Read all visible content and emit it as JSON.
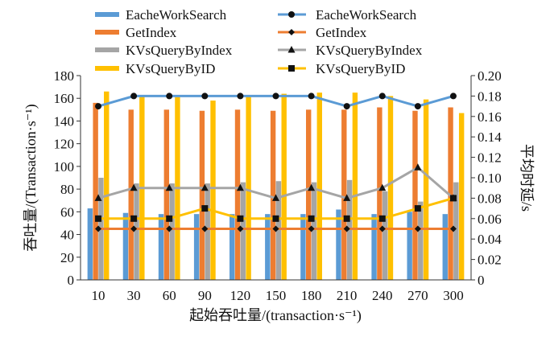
{
  "chart_data": {
    "type": "bar",
    "categories": [
      "10",
      "30",
      "60",
      "90",
      "120",
      "150",
      "180",
      "210",
      "240",
      "270",
      "300"
    ],
    "xlabel": "起始吞吐量/(transaction·s⁻¹)",
    "ylabel": "吞吐量/(Transaction·s⁻¹)",
    "y2label": "平均时延/s",
    "ylim": [
      0,
      180
    ],
    "yticks": [
      "0",
      "20",
      "40",
      "60",
      "80",
      "100",
      "120",
      "140",
      "160",
      "180"
    ],
    "y2lim": [
      0,
      0.2
    ],
    "y2ticks": [
      "0",
      "0.02",
      "0.04",
      "0.06",
      "0.08",
      "0.10",
      "0.12",
      "0.14",
      "0.16",
      "0.18",
      "0.20"
    ],
    "grid": false,
    "legend_position": "top",
    "bar_series": [
      {
        "name": "EacheWorkSearch",
        "color": "#5b9bd5",
        "values": [
          63,
          59,
          58,
          58,
          58,
          58,
          58,
          62,
          58,
          60,
          58
        ]
      },
      {
        "name": "GetIndex",
        "color": "#ed7d31",
        "values": [
          156,
          150,
          150,
          149,
          150,
          149,
          150,
          150,
          152,
          149,
          152
        ]
      },
      {
        "name": "KVsQueryByIndex",
        "color": "#a5a5a5",
        "values": [
          90,
          85,
          85,
          85,
          86,
          87,
          86,
          88,
          78,
          69,
          86
        ]
      },
      {
        "name": "KVsQueryByID",
        "color": "#ffc000",
        "values": [
          166,
          162,
          161,
          158,
          163,
          164,
          165,
          165,
          162,
          159,
          147
        ]
      }
    ],
    "line_series": [
      {
        "name": "EacheWorkSearch",
        "color": "#5b9bd5",
        "marker": "circle",
        "values": [
          0.17,
          0.18,
          0.18,
          0.18,
          0.18,
          0.18,
          0.18,
          0.17,
          0.18,
          0.17,
          0.18
        ]
      },
      {
        "name": "GetIndex",
        "color": "#ed7d31",
        "marker": "diamond",
        "values": [
          0.05,
          0.05,
          0.05,
          0.05,
          0.05,
          0.05,
          0.05,
          0.05,
          0.05,
          0.05,
          0.05
        ]
      },
      {
        "name": "KVsQueryByIndex",
        "color": "#a5a5a5",
        "marker": "triangle",
        "values": [
          0.08,
          0.09,
          0.09,
          0.09,
          0.09,
          0.08,
          0.09,
          0.08,
          0.09,
          0.11,
          0.08
        ]
      },
      {
        "name": "KVsQueryByID",
        "color": "#ffc000",
        "marker": "square",
        "values": [
          0.06,
          0.06,
          0.06,
          0.07,
          0.06,
          0.06,
          0.06,
          0.06,
          0.06,
          0.07,
          0.08
        ]
      }
    ]
  }
}
